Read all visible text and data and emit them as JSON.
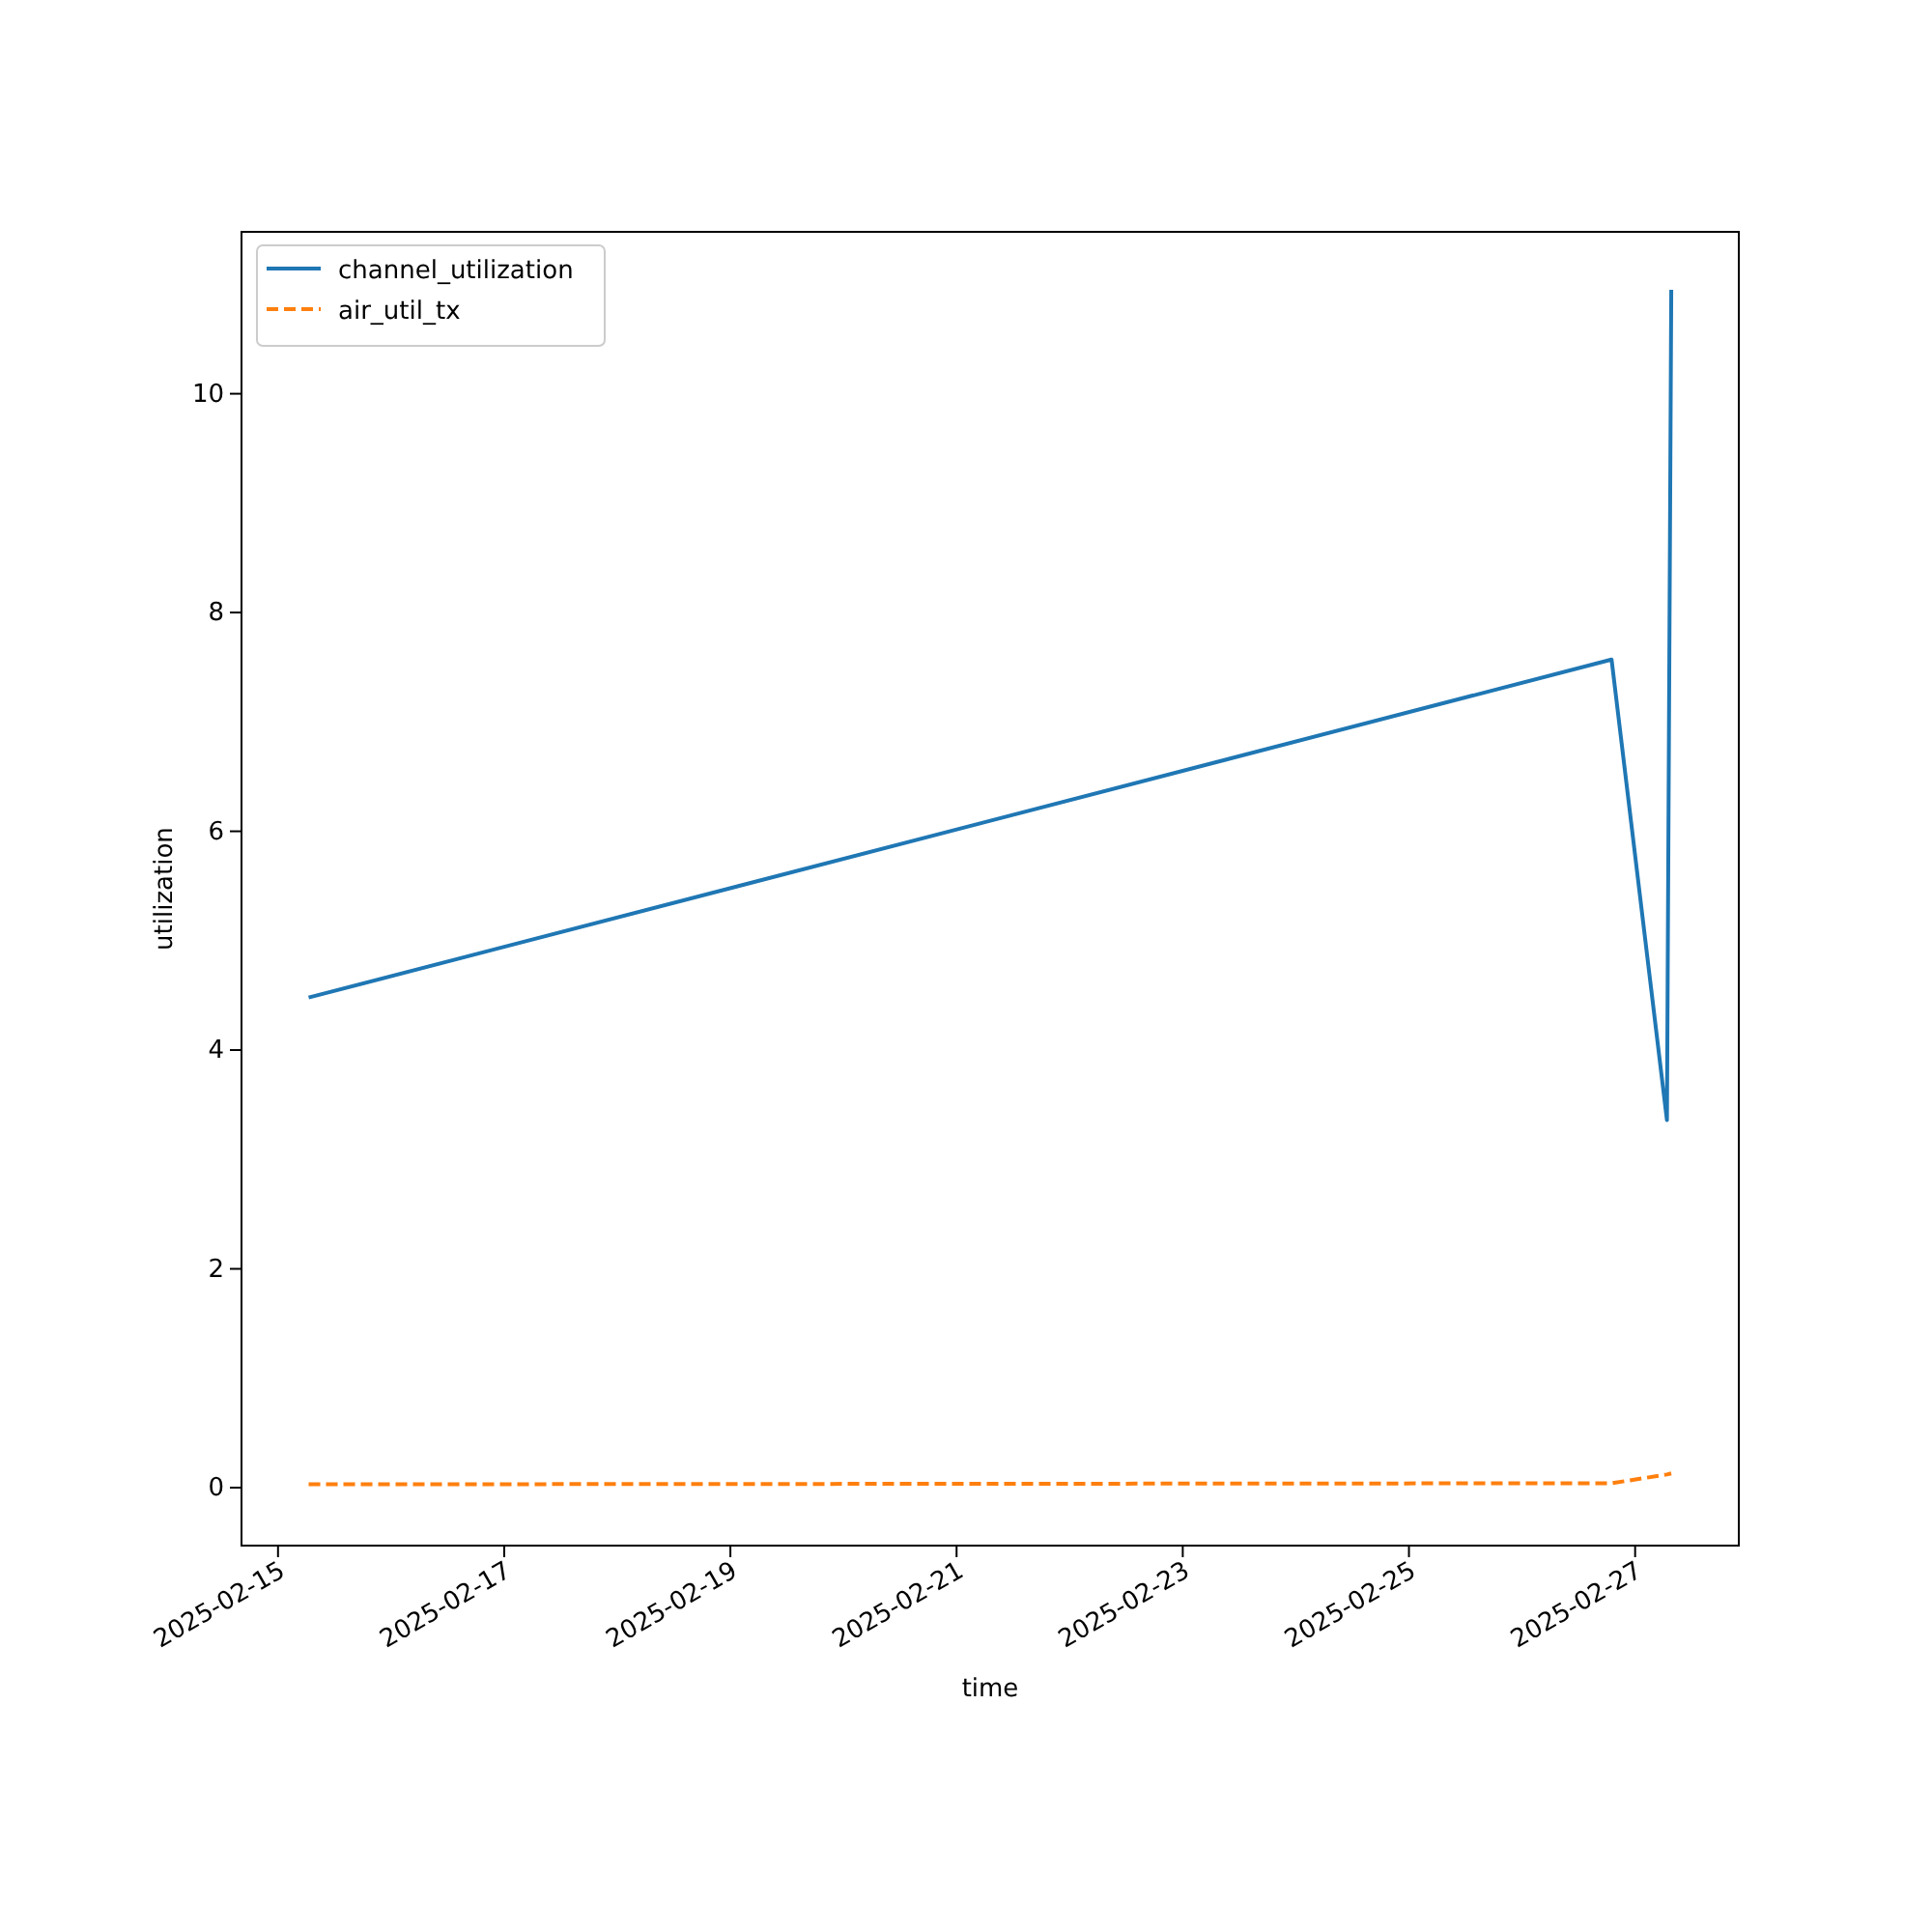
{
  "chart_data": {
    "type": "line",
    "xlabel": "time",
    "ylabel": "utilization",
    "x": [
      "2025-02-15T06:30",
      "2025-02-26T19:00",
      "2025-02-27T06:45",
      "2025-02-27T07:40"
    ],
    "series": [
      {
        "name": "channel_utilization",
        "color": "#1f77b4",
        "line_style": "solid",
        "values": [
          4.48,
          7.57,
          3.36,
          10.95
        ]
      },
      {
        "name": "air_util_tx",
        "color": "#ff7f0e",
        "line_style": "dashed",
        "values": [
          0.03,
          0.04,
          0.12,
          0.13
        ]
      }
    ],
    "xlim": [
      "2025-02-14T16:15",
      "2025-02-27T22:00"
    ],
    "ylim": [
      -0.53,
      11.48
    ],
    "xticks": [
      "2025-02-15",
      "2025-02-17",
      "2025-02-19",
      "2025-02-21",
      "2025-02-23",
      "2025-02-25",
      "2025-02-27"
    ],
    "yticks": [
      0,
      2,
      4,
      6,
      8,
      10
    ],
    "grid": false,
    "legend": "top left",
    "marker": "none"
  }
}
